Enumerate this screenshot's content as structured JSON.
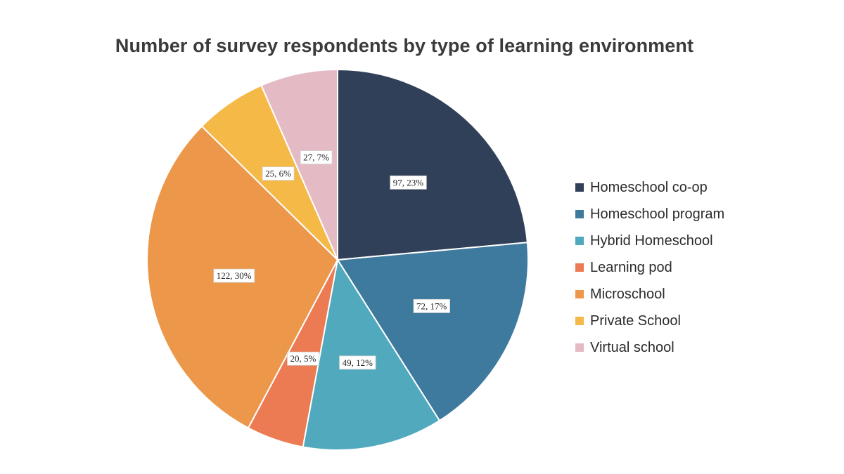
{
  "chart_data": {
    "type": "pie",
    "title": "Number of survey respondents by type of learning environment",
    "legend_position": "right",
    "slices": [
      {
        "label": "Homeschool co-op",
        "value": 97,
        "percent_label": "23%",
        "color": "#314059"
      },
      {
        "label": "Homeschool program",
        "value": 72,
        "percent_label": "17%",
        "color": "#3e7a9d"
      },
      {
        "label": "Hybrid Homeschool",
        "value": 49,
        "percent_label": "12%",
        "color": "#51a9bd"
      },
      {
        "label": "Learning pod",
        "value": 20,
        "percent_label": "5%",
        "color": "#ec7b53"
      },
      {
        "label": "Microschool",
        "value": 122,
        "percent_label": "30%",
        "color": "#ec9749"
      },
      {
        "label": "Private School",
        "value": 25,
        "percent_label": "6%",
        "color": "#f5b948"
      },
      {
        "label": "Virtual school",
        "value": 27,
        "percent_label": "7%",
        "color": "#e4bac5"
      }
    ]
  }
}
